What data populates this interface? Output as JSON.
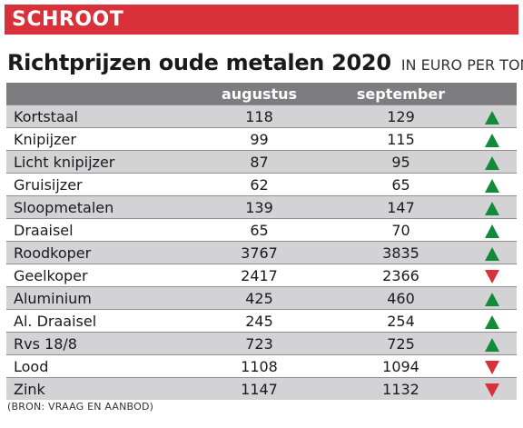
{
  "banner": {
    "label": "SCHROOT",
    "color": "#d9313a"
  },
  "heading": {
    "title": "Richtprijzen oude metalen 2020",
    "unit": "IN EURO PER TON"
  },
  "table": {
    "columns": [
      "",
      "augustus",
      "september",
      ""
    ],
    "rows": [
      {
        "name": "Kortstaal",
        "augustus": "118",
        "september": "129",
        "trend": "up"
      },
      {
        "name": "Knipijzer",
        "augustus": "99",
        "september": "115",
        "trend": "up"
      },
      {
        "name": "Licht knipijzer",
        "augustus": "87",
        "september": "95",
        "trend": "up"
      },
      {
        "name": "Gruisijzer",
        "augustus": "62",
        "september": "65",
        "trend": "up"
      },
      {
        "name": "Sloopmetalen",
        "augustus": "139",
        "september": "147",
        "trend": "up"
      },
      {
        "name": "Draaisel",
        "augustus": "65",
        "september": "70",
        "trend": "up"
      },
      {
        "name": "Roodkoper",
        "augustus": "3767",
        "september": "3835",
        "trend": "up"
      },
      {
        "name": "Geelkoper",
        "augustus": "2417",
        "september": "2366",
        "trend": "down"
      },
      {
        "name": "Aluminium",
        "augustus": "425",
        "september": "460",
        "trend": "up"
      },
      {
        "name": "Al. Draaisel",
        "augustus": "245",
        "september": "254",
        "trend": "up"
      },
      {
        "name": "Rvs 18/8",
        "augustus": "723",
        "september": "725",
        "trend": "up"
      },
      {
        "name": "Lood",
        "augustus": "1108",
        "september": "1094",
        "trend": "down"
      },
      {
        "name": "Zink",
        "augustus": "1147",
        "september": "1132",
        "trend": "down"
      }
    ],
    "icons": {
      "up": "triangle-up-icon",
      "down": "triangle-down-icon"
    },
    "trend_colors": {
      "up": "#138a3a",
      "down": "#d9313a"
    }
  },
  "source": "(BRON: VRAAG EN AANBOD)"
}
